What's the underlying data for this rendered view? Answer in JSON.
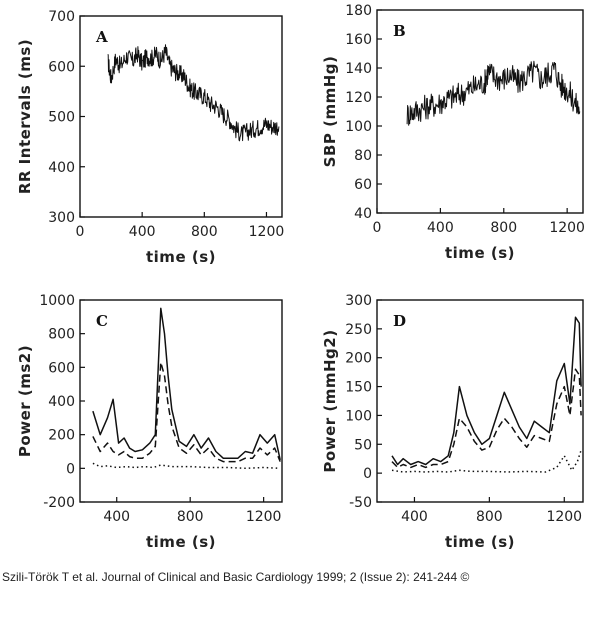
{
  "citation": "Szili-Török T et al. Journal of Clinical and Basic Cardiology 1999; 2 (Issue 2): 241-244 ©",
  "chart_data": [
    {
      "panel": "A",
      "type": "line",
      "xlabel": "time (s)",
      "ylabel": "RR Intervals (ms)",
      "xlim": [
        0,
        1300
      ],
      "ylim": [
        300,
        700
      ],
      "xticks": [
        0,
        400,
        800,
        1200
      ],
      "yticks": [
        300,
        400,
        500,
        600,
        700
      ],
      "color": "#111111",
      "series": [
        {
          "style": "solid",
          "noise": 18,
          "x": [
            180,
            200,
            230,
            260,
            300,
            340,
            370,
            400,
            430,
            460,
            490,
            520,
            550,
            580,
            610,
            640,
            670,
            700,
            730,
            760,
            800,
            840,
            880,
            920,
            960,
            1000,
            1040,
            1080,
            1120,
            1160,
            1200,
            1240,
            1280
          ],
          "y": [
            610,
            575,
            615,
            600,
            620,
            610,
            625,
            605,
            620,
            615,
            625,
            610,
            630,
            600,
            590,
            585,
            580,
            560,
            550,
            545,
            540,
            525,
            520,
            505,
            495,
            475,
            465,
            470,
            475,
            480,
            485,
            480,
            480
          ]
        }
      ]
    },
    {
      "panel": "B",
      "type": "line",
      "xlabel": "time (s)",
      "ylabel": "SBP (mmHg)",
      "xlim": [
        0,
        1300
      ],
      "ylim": [
        40,
        180
      ],
      "xticks": [
        0,
        400,
        800,
        1200
      ],
      "yticks": [
        40,
        60,
        80,
        100,
        120,
        140,
        160,
        180
      ],
      "color": "#111111",
      "series": [
        {
          "style": "solid",
          "noise": 9,
          "x": [
            190,
            230,
            280,
            330,
            380,
            430,
            480,
            530,
            580,
            630,
            680,
            700,
            740,
            790,
            840,
            890,
            940,
            990,
            1040,
            1080,
            1120,
            1160,
            1200,
            1240,
            1280
          ],
          "y": [
            108,
            110,
            112,
            114,
            115,
            118,
            120,
            122,
            125,
            128,
            130,
            138,
            134,
            132,
            135,
            130,
            134,
            138,
            132,
            136,
            140,
            128,
            125,
            118,
            110
          ]
        }
      ]
    },
    {
      "panel": "C",
      "type": "line",
      "xlabel": "time (s)",
      "ylabel": "Power (ms2)",
      "xlim": [
        200,
        1300
      ],
      "ylim": [
        -200,
        1000
      ],
      "xticks": [
        400,
        800,
        1200
      ],
      "yticks": [
        -200,
        0,
        200,
        400,
        600,
        800,
        1000
      ],
      "color": "#111111",
      "series": [
        {
          "style": "solid",
          "x": [
            270,
            310,
            350,
            380,
            410,
            440,
            470,
            500,
            540,
            580,
            610,
            640,
            660,
            680,
            700,
            740,
            780,
            820,
            860,
            900,
            940,
            980,
            1020,
            1060,
            1100,
            1140,
            1180,
            1220,
            1260,
            1290
          ],
          "y": [
            340,
            200,
            300,
            410,
            150,
            180,
            120,
            100,
            110,
            150,
            200,
            950,
            800,
            550,
            350,
            160,
            130,
            200,
            120,
            180,
            100,
            60,
            60,
            60,
            100,
            90,
            200,
            150,
            200,
            50
          ]
        },
        {
          "style": "dashed",
          "x": [
            270,
            310,
            350,
            380,
            410,
            440,
            470,
            500,
            540,
            580,
            610,
            640,
            660,
            680,
            700,
            740,
            780,
            820,
            860,
            900,
            940,
            980,
            1020,
            1060,
            1100,
            1140,
            1180,
            1220,
            1260,
            1290
          ],
          "y": [
            190,
            100,
            150,
            100,
            80,
            100,
            70,
            60,
            60,
            90,
            130,
            630,
            550,
            380,
            250,
            120,
            90,
            140,
            80,
            120,
            60,
            40,
            40,
            40,
            60,
            60,
            120,
            80,
            120,
            40
          ]
        },
        {
          "style": "dotted",
          "x": [
            270,
            310,
            350,
            400,
            450,
            500,
            550,
            600,
            640,
            700,
            800,
            900,
            1000,
            1100,
            1200,
            1290
          ],
          "y": [
            30,
            10,
            15,
            5,
            10,
            5,
            10,
            5,
            20,
            10,
            10,
            5,
            5,
            0,
            5,
            0
          ]
        }
      ]
    },
    {
      "panel": "D",
      "type": "line",
      "xlabel": "time (s)",
      "ylabel": "Power (mmHg2)",
      "xlim": [
        200,
        1300
      ],
      "ylim": [
        -50,
        300
      ],
      "xticks": [
        400,
        800,
        1200
      ],
      "yticks": [
        -50,
        0,
        50,
        100,
        150,
        200,
        250,
        300
      ],
      "color": "#111111",
      "series": [
        {
          "style": "solid",
          "x": [
            280,
            310,
            340,
            380,
            420,
            460,
            500,
            540,
            580,
            610,
            640,
            680,
            720,
            760,
            800,
            840,
            880,
            920,
            960,
            1000,
            1040,
            1080,
            1120,
            1160,
            1200,
            1230,
            1260,
            1280,
            1290
          ],
          "y": [
            30,
            15,
            25,
            15,
            20,
            15,
            25,
            20,
            30,
            70,
            150,
            100,
            70,
            50,
            60,
            100,
            140,
            110,
            80,
            60,
            90,
            80,
            70,
            160,
            190,
            120,
            270,
            260,
            150
          ]
        },
        {
          "style": "dashed",
          "x": [
            280,
            310,
            340,
            380,
            420,
            460,
            500,
            540,
            580,
            610,
            640,
            680,
            720,
            760,
            800,
            840,
            880,
            920,
            960,
            1000,
            1040,
            1080,
            1120,
            1160,
            1200,
            1230,
            1260,
            1280,
            1290
          ],
          "y": [
            20,
            10,
            15,
            10,
            15,
            10,
            15,
            15,
            20,
            50,
            95,
            80,
            55,
            40,
            45,
            75,
            95,
            80,
            60,
            45,
            65,
            60,
            55,
            120,
            150,
            100,
            180,
            170,
            100
          ]
        },
        {
          "style": "dotted",
          "x": [
            280,
            340,
            400,
            460,
            520,
            580,
            640,
            700,
            800,
            900,
            1000,
            1100,
            1160,
            1200,
            1240,
            1270,
            1290
          ],
          "y": [
            5,
            2,
            3,
            2,
            3,
            2,
            5,
            3,
            3,
            2,
            3,
            2,
            10,
            30,
            5,
            20,
            40
          ]
        }
      ]
    }
  ]
}
